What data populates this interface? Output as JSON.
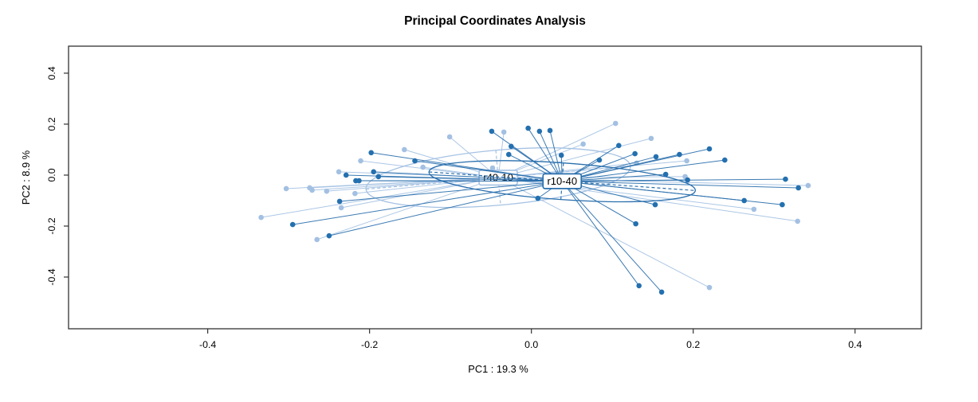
{
  "chart_data": {
    "type": "scatter",
    "title": "Principal Coordinates Analysis",
    "xlabel": "PC1 : 19.3 %",
    "ylabel": "PC2 : 8.9 %",
    "xlim": [
      -0.572,
      0.482
    ],
    "ylim": [
      -0.603,
      0.506
    ],
    "xticks": [
      -0.4,
      -0.2,
      0.0,
      0.2,
      0.4
    ],
    "yticks": [
      -0.4,
      -0.2,
      0.0,
      0.2,
      0.4
    ],
    "grid": false,
    "legend_position": "none",
    "axis_color": "#333333",
    "plot_style": "spider-with-ellipses",
    "groups": [
      {
        "name": "r40-10",
        "color": "#a5c2e3",
        "point_color": "#a3c0e2",
        "label_box_fill": "#ffffff",
        "centroid": [
          -0.041,
          -0.01
        ],
        "ellipse": {
          "cx": -0.041,
          "cy": -0.01,
          "rx": 0.164,
          "ry": 0.108,
          "rotation_deg": -5
        },
        "points": [
          [
            -0.334,
            -0.166
          ],
          [
            -0.303,
            -0.053
          ],
          [
            -0.274,
            -0.05
          ],
          [
            -0.271,
            -0.059
          ],
          [
            -0.265,
            -0.253
          ],
          [
            -0.253,
            -0.063
          ],
          [
            -0.238,
            0.013
          ],
          [
            -0.235,
            -0.128
          ],
          [
            -0.218,
            -0.072
          ],
          [
            -0.211,
            0.056
          ],
          [
            -0.157,
            0.1
          ],
          [
            -0.134,
            0.031
          ],
          [
            -0.101,
            0.15
          ],
          [
            -0.048,
            0.028
          ],
          [
            -0.034,
            0.169
          ],
          [
            0.064,
            0.122
          ],
          [
            0.104,
            0.203
          ],
          [
            0.13,
            0.047
          ],
          [
            0.148,
            0.144
          ],
          [
            0.19,
            -0.006
          ],
          [
            0.192,
            0.056
          ],
          [
            0.22,
            -0.441
          ],
          [
            0.275,
            -0.134
          ],
          [
            0.329,
            -0.181
          ],
          [
            0.342,
            -0.041
          ]
        ]
      },
      {
        "name": "r10-40",
        "color": "#2a6fad",
        "point_color": "#2470af",
        "label_box_fill": "#ffffff",
        "centroid": [
          0.038,
          -0.024
        ],
        "ellipse": {
          "cx": 0.038,
          "cy": -0.024,
          "rx": 0.165,
          "ry": 0.072,
          "rotation_deg": 4
        },
        "points": [
          [
            -0.295,
            -0.194
          ],
          [
            -0.25,
            -0.238
          ],
          [
            -0.237,
            -0.103
          ],
          [
            -0.229,
            0.0
          ],
          [
            -0.217,
            -0.022
          ],
          [
            -0.213,
            -0.022
          ],
          [
            -0.198,
            0.088
          ],
          [
            -0.195,
            0.013
          ],
          [
            -0.189,
            -0.006
          ],
          [
            -0.144,
            0.056
          ],
          [
            -0.049,
            0.172
          ],
          [
            -0.028,
            0.081
          ],
          [
            -0.025,
            0.113
          ],
          [
            -0.004,
            0.184
          ],
          [
            0.008,
            -0.091
          ],
          [
            0.01,
            0.172
          ],
          [
            0.023,
            0.175
          ],
          [
            0.037,
            0.078
          ],
          [
            0.084,
            0.059
          ],
          [
            0.108,
            0.116
          ],
          [
            0.128,
            0.084
          ],
          [
            0.129,
            -0.191
          ],
          [
            0.133,
            -0.434
          ],
          [
            0.153,
            -0.116
          ],
          [
            0.154,
            0.072
          ],
          [
            0.161,
            -0.459
          ],
          [
            0.166,
            0.003
          ],
          [
            0.183,
            0.081
          ],
          [
            0.193,
            -0.019
          ],
          [
            0.22,
            0.103
          ],
          [
            0.239,
            0.059
          ],
          [
            0.263,
            -0.1
          ],
          [
            0.31,
            -0.116
          ],
          [
            0.314,
            -0.016
          ],
          [
            0.33,
            -0.05
          ]
        ]
      }
    ]
  }
}
